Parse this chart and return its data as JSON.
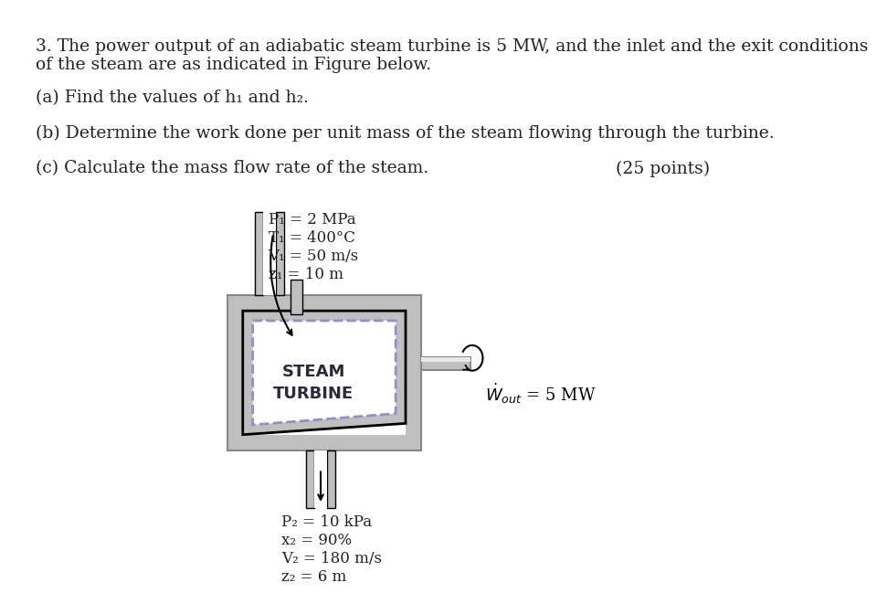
{
  "bg_color": "#ffffff",
  "text_color": "#222222",
  "title_line1": "3. The power output of an adiabatic steam turbine is 5 MW, and the inlet and the exit conditions",
  "title_line2": "of the steam are as indicated in Figure below.",
  "part_a": "(a) Find the values of h₁ and h₂.",
  "part_b": "(b) Determine the work done per unit mass of the steam flowing through the turbine.",
  "part_c": "(c) Calculate the mass flow rate of the steam.",
  "points": "(25 points)",
  "inlet_labels": [
    "P₁ = 2 MPa",
    "T₁ = 400°C",
    "V₁ = 50 m/s",
    "z₁ = 10 m"
  ],
  "outlet_labels": [
    "P₂ = 10 kPa",
    "x₂ = 90%",
    "V₂ = 180 m/s",
    "z₂ = 6 m"
  ],
  "turbine_label_line1": "STEAM",
  "turbine_label_line2": "TURBINE",
  "work_label": "$\\dot{W}_{out}$ = 5 MW",
  "gray_color": "#c0bfbf",
  "gray_dark": "#888888",
  "dashed_color": "#9090c8",
  "font_size_text": 13.5,
  "font_size_labels": 12,
  "font_size_turbine": 13
}
